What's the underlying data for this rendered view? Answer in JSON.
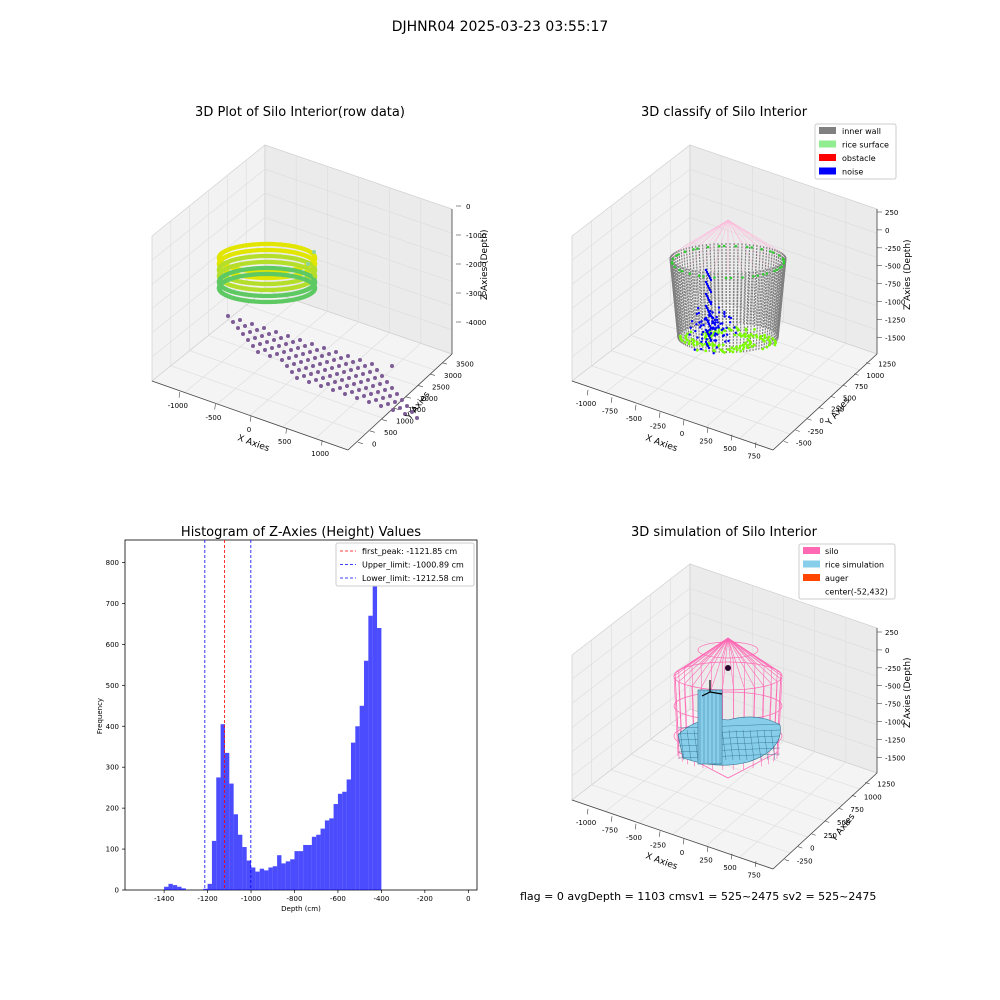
{
  "suptitle": "DJHNR04 2025-03-23 03:55:17",
  "panel1": {
    "title": "3D Plot of Silo Interior(row data)",
    "xlabel": "X Axies",
    "ylabel": "Y Axies",
    "zlabel": "Z Axies (Depth)",
    "xticks": [
      "-1000",
      "-500",
      "0",
      "500",
      "1000"
    ],
    "yticks": [
      "0",
      "500",
      "1000",
      "1500",
      "2000",
      "2500",
      "3000",
      "3500"
    ],
    "zticks": [
      "0",
      "-1000",
      "-2000",
      "-3000",
      "-4000"
    ]
  },
  "panel2": {
    "title": "3D classify of Silo Interior",
    "xlabel": "X Axies",
    "ylabel": "Y Axies",
    "zlabel": "Z Axies (Depth)",
    "xticks": [
      "-1000",
      "-750",
      "-500",
      "-250",
      "0",
      "250",
      "500",
      "750"
    ],
    "yticks": [
      "-500",
      "-250",
      "0",
      "250",
      "500",
      "750",
      "1000",
      "1250"
    ],
    "zticks": [
      "250",
      "0",
      "-250",
      "-500",
      "-750",
      "-1000",
      "-1250",
      "-1500"
    ],
    "legend": [
      {
        "label": "inner wall",
        "color": "#808080"
      },
      {
        "label": "rice surface",
        "color": "#90ee90"
      },
      {
        "label": "obstacle",
        "color": "#ff0000"
      },
      {
        "label": "noise",
        "color": "#0000ff"
      }
    ]
  },
  "panel4": {
    "title": "3D simulation of Silo Interior",
    "xlabel": "X Axies",
    "ylabel": "Y Axies",
    "zlabel": "Z Axies (Depth)",
    "xticks": [
      "-1000",
      "-750",
      "-500",
      "-250",
      "0",
      "250",
      "500",
      "750"
    ],
    "yticks": [
      "-250",
      "0",
      "250",
      "500",
      "750",
      "1000",
      "1250"
    ],
    "zticks": [
      "250",
      "0",
      "-250",
      "-500",
      "-750",
      "-1000",
      "-1250",
      "-1500"
    ],
    "legend": [
      {
        "label": "silo",
        "color": "#ff69b4"
      },
      {
        "label": "rice simulation",
        "color": "#87ceeb"
      },
      {
        "label": "auger",
        "color": "#ff4500"
      },
      {
        "label": "center(-52,432)",
        "color": ""
      }
    ]
  },
  "status_line": "flag = 0     avgDepth = 1103 cmsv1 = 525~2475  sv2 = 525~2475",
  "colors": {
    "hist_bar": "#0000ff",
    "first_peak": "#ff0000",
    "upper": "#0000ff",
    "lower": "#0000ff"
  },
  "chart_data": {
    "type": "bar",
    "title": "Histogram of Z-Axies (Height) Values",
    "xlabel": "Depth (cm)",
    "ylabel": "Frequency",
    "xlim": [
      -1580,
      40
    ],
    "ylim": [
      0,
      855
    ],
    "xticks": [
      -1400,
      -1200,
      -1000,
      -800,
      -600,
      -400,
      -200,
      0
    ],
    "yticks": [
      0,
      100,
      200,
      300,
      400,
      500,
      600,
      700,
      800
    ],
    "bin_width": 20,
    "bin_starts": [
      -1500,
      -1480,
      -1460,
      -1440,
      -1420,
      -1400,
      -1380,
      -1360,
      -1340,
      -1320,
      -1300,
      -1280,
      -1260,
      -1240,
      -1220,
      -1200,
      -1180,
      -1160,
      -1140,
      -1120,
      -1100,
      -1080,
      -1060,
      -1040,
      -1020,
      -1000,
      -980,
      -960,
      -940,
      -920,
      -900,
      -880,
      -860,
      -840,
      -820,
      -800,
      -780,
      -760,
      -740,
      -720,
      -700,
      -680,
      -660,
      -640,
      -620,
      -600,
      -580,
      -560,
      -540,
      -520,
      -500,
      -480,
      -460,
      -440,
      -420,
      -400,
      -380,
      -360,
      -340,
      -320,
      -300,
      -280,
      -260,
      -240,
      -220,
      -200,
      -180,
      -160,
      -140,
      -120,
      -100,
      -80,
      -60,
      -40,
      -20
    ],
    "values": [
      0,
      0,
      0,
      0,
      0,
      8,
      15,
      12,
      8,
      4,
      0,
      0,
      0,
      0,
      3,
      15,
      120,
      275,
      405,
      335,
      260,
      185,
      135,
      105,
      72,
      55,
      45,
      52,
      48,
      55,
      58,
      85,
      65,
      70,
      75,
      95,
      95,
      110,
      110,
      130,
      135,
      150,
      170,
      175,
      210,
      235,
      240,
      270,
      360,
      400,
      450,
      560,
      670,
      800,
      640,
      0,
      0,
      0,
      0,
      0,
      0,
      0,
      0,
      0,
      0,
      0,
      0,
      0,
      0,
      0,
      0,
      0,
      0,
      0,
      0
    ],
    "vlines": [
      {
        "label": "first_peak: -1121.85 cm",
        "x": -1121.85,
        "color": "#ff0000"
      },
      {
        "label": "Upper_limit: -1000.89 cm",
        "x": -1000.89,
        "color": "#0000ff"
      },
      {
        "label": "Lower_limit: -1212.58 cm",
        "x": -1212.58,
        "color": "#0000ff"
      }
    ],
    "legend_position": "upper right"
  }
}
